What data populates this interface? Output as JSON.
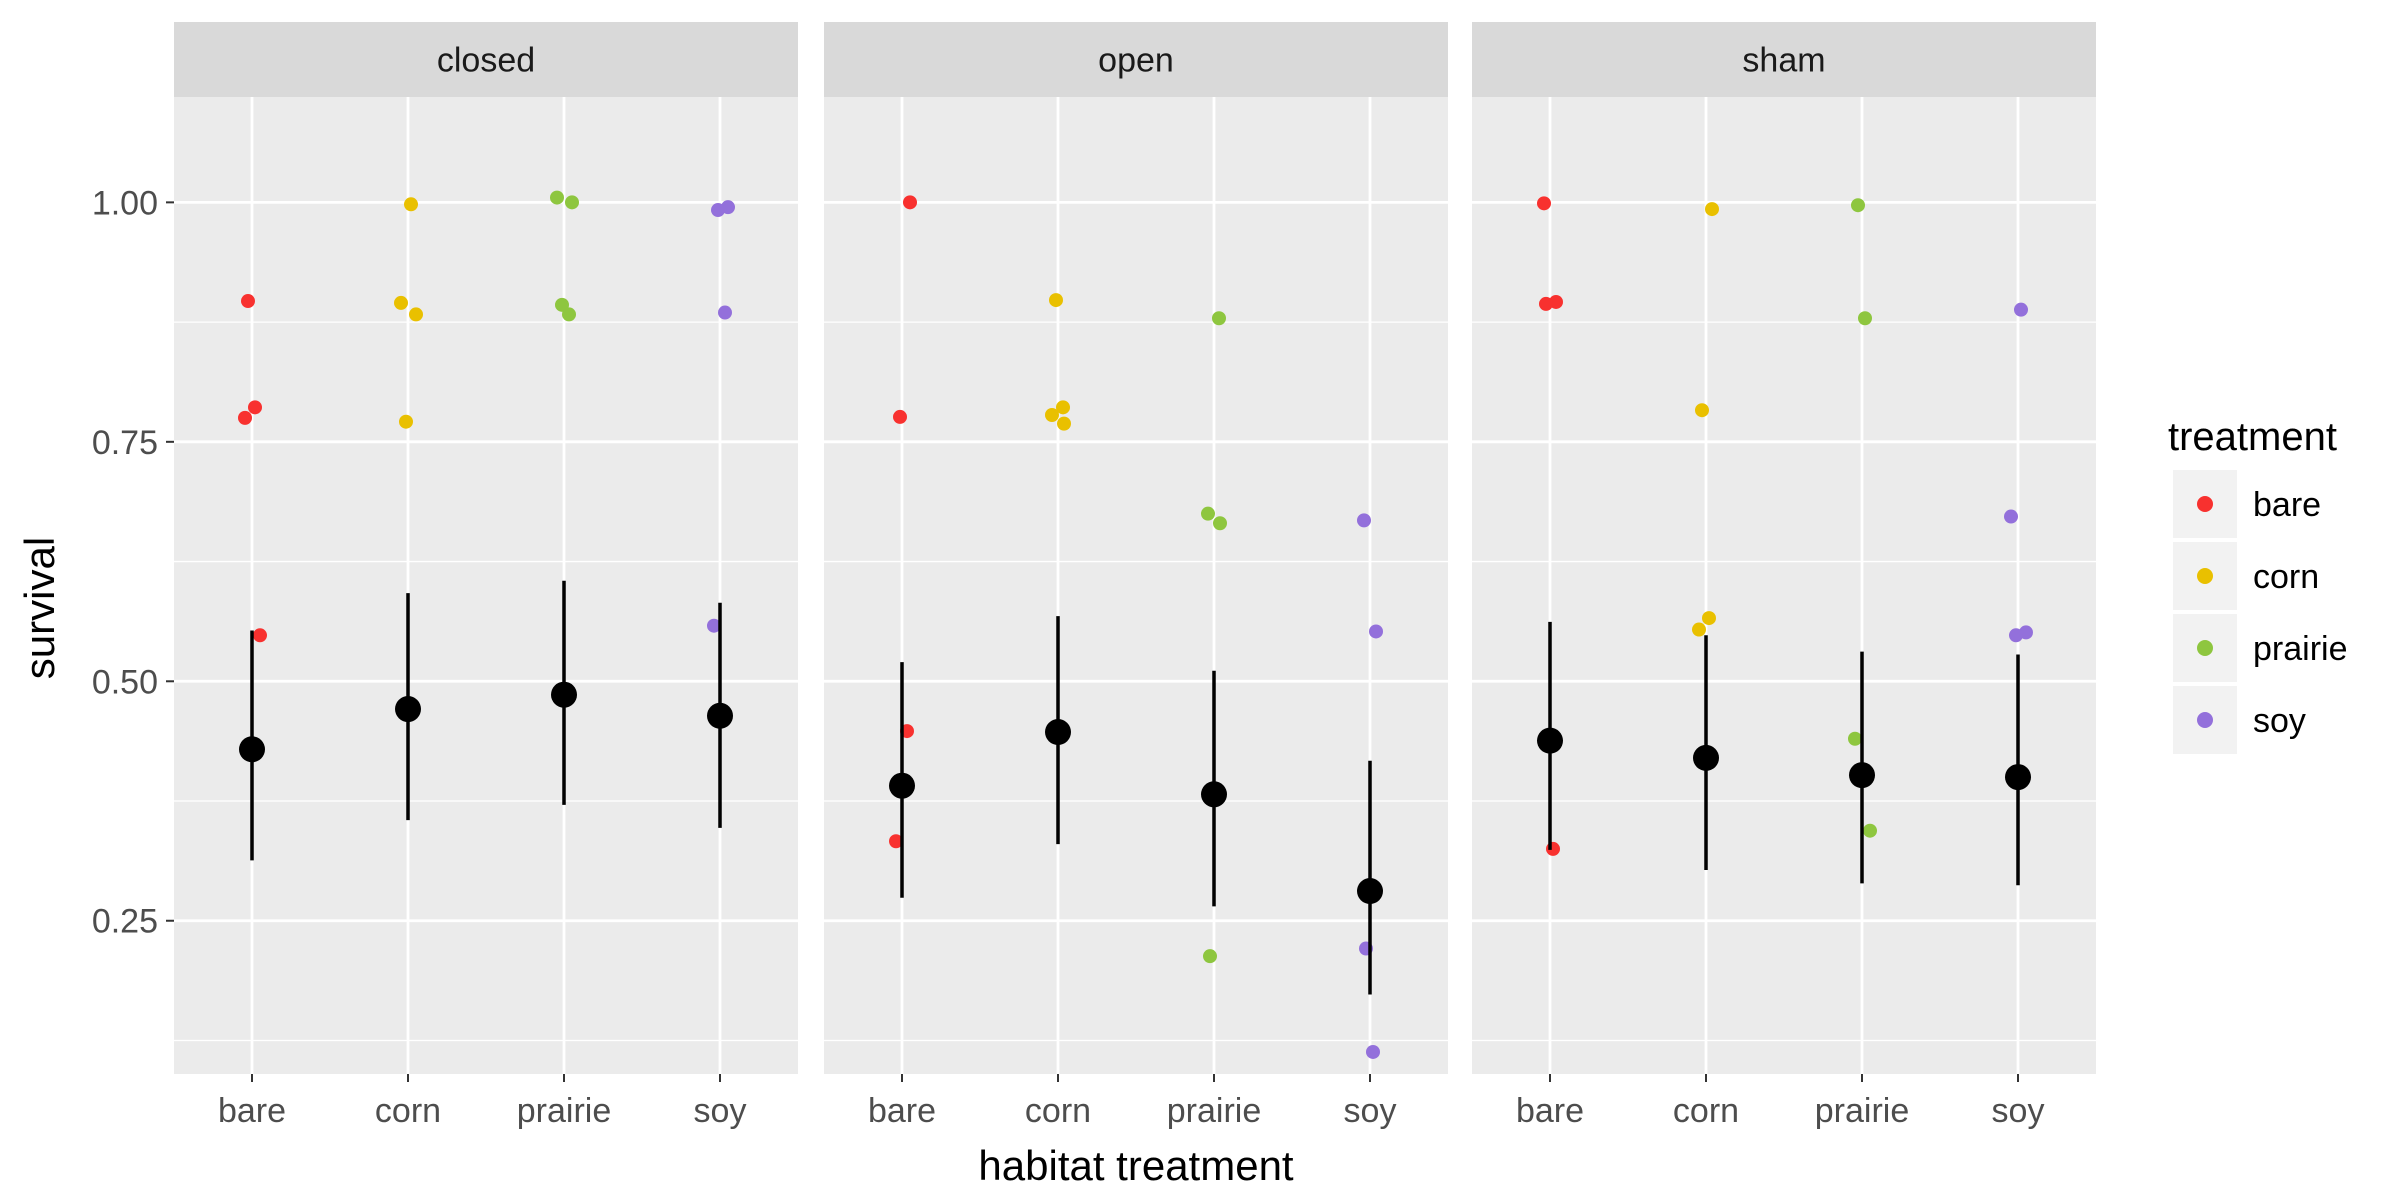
{
  "chart_data": {
    "type": "scatter",
    "title": "",
    "xlabel": "habitat treatment",
    "ylabel": "survival",
    "ylim": [
      0.09,
      1.11
    ],
    "y_ticks": [
      0.25,
      0.5,
      0.75,
      1.0
    ],
    "y_tick_labels": [
      "0.25",
      "0.50",
      "0.75",
      "1.00"
    ],
    "categories": [
      "bare",
      "corn",
      "prairie",
      "soy"
    ],
    "grid": true,
    "legend_position": "right",
    "legend": {
      "title": "treatment",
      "entries": [
        {
          "label": "bare",
          "color": "#f8312f"
        },
        {
          "label": "corn",
          "color": "#e9c000"
        },
        {
          "label": "prairie",
          "color": "#8ec63f"
        },
        {
          "label": "soy",
          "color": "#9370db"
        }
      ]
    },
    "panels": [
      {
        "label": "closed",
        "points": [
          {
            "category": "bare",
            "y": 0.897
          },
          {
            "category": "bare",
            "y": 0.786
          },
          {
            "category": "bare",
            "y": 0.775
          },
          {
            "category": "bare",
            "y": 0.548
          },
          {
            "category": "corn",
            "y": 0.998
          },
          {
            "category": "corn",
            "y": 0.895
          },
          {
            "category": "corn",
            "y": 0.883
          },
          {
            "category": "corn",
            "y": 0.771
          },
          {
            "category": "prairie",
            "y": 1.005
          },
          {
            "category": "prairie",
            "y": 1.0
          },
          {
            "category": "prairie",
            "y": 0.893
          },
          {
            "category": "prairie",
            "y": 0.883
          },
          {
            "category": "soy",
            "y": 0.995
          },
          {
            "category": "soy",
            "y": 0.992
          },
          {
            "category": "soy",
            "y": 0.885
          },
          {
            "category": "soy",
            "y": 0.558
          }
        ],
        "summary": [
          {
            "category": "bare",
            "mean": 0.429,
            "lower": 0.313,
            "upper": 0.553
          },
          {
            "category": "corn",
            "mean": 0.471,
            "lower": 0.355,
            "upper": 0.592
          },
          {
            "category": "prairie",
            "mean": 0.486,
            "lower": 0.371,
            "upper": 0.605
          },
          {
            "category": "soy",
            "mean": 0.464,
            "lower": 0.347,
            "upper": 0.582
          }
        ]
      },
      {
        "label": "open",
        "points": [
          {
            "category": "bare",
            "y": 1.0
          },
          {
            "category": "bare",
            "y": 0.776
          },
          {
            "category": "bare",
            "y": 0.448
          },
          {
            "category": "bare",
            "y": 0.333
          },
          {
            "category": "corn",
            "y": 0.898
          },
          {
            "category": "corn",
            "y": 0.786
          },
          {
            "category": "corn",
            "y": 0.778
          },
          {
            "category": "corn",
            "y": 0.769
          },
          {
            "category": "prairie",
            "y": 0.879
          },
          {
            "category": "prairie",
            "y": 0.675
          },
          {
            "category": "prairie",
            "y": 0.665
          },
          {
            "category": "prairie",
            "y": 0.213
          },
          {
            "category": "soy",
            "y": 0.668
          },
          {
            "category": "soy",
            "y": 0.552
          },
          {
            "category": "soy",
            "y": 0.221
          },
          {
            "category": "soy",
            "y": 0.113
          }
        ],
        "summary": [
          {
            "category": "bare",
            "mean": 0.391,
            "lower": 0.274,
            "upper": 0.52
          },
          {
            "category": "corn",
            "mean": 0.447,
            "lower": 0.33,
            "upper": 0.568
          },
          {
            "category": "prairie",
            "mean": 0.382,
            "lower": 0.265,
            "upper": 0.511
          },
          {
            "category": "soy",
            "mean": 0.281,
            "lower": 0.173,
            "upper": 0.417
          }
        ]
      },
      {
        "label": "sham",
        "points": [
          {
            "category": "bare",
            "y": 0.999
          },
          {
            "category": "bare",
            "y": 0.896
          },
          {
            "category": "bare",
            "y": 0.894
          },
          {
            "category": "bare",
            "y": 0.325
          },
          {
            "category": "corn",
            "y": 0.993
          },
          {
            "category": "corn",
            "y": 0.783
          },
          {
            "category": "corn",
            "y": 0.566
          },
          {
            "category": "corn",
            "y": 0.554
          },
          {
            "category": "prairie",
            "y": 0.997
          },
          {
            "category": "prairie",
            "y": 0.879
          },
          {
            "category": "prairie",
            "y": 0.44
          },
          {
            "category": "prairie",
            "y": 0.344
          },
          {
            "category": "soy",
            "y": 0.888
          },
          {
            "category": "soy",
            "y": 0.672
          },
          {
            "category": "soy",
            "y": 0.551
          },
          {
            "category": "soy",
            "y": 0.548
          }
        ],
        "summary": [
          {
            "category": "bare",
            "mean": 0.438,
            "lower": 0.324,
            "upper": 0.562
          },
          {
            "category": "corn",
            "mean": 0.42,
            "lower": 0.303,
            "upper": 0.548
          },
          {
            "category": "prairie",
            "mean": 0.402,
            "lower": 0.289,
            "upper": 0.531
          },
          {
            "category": "soy",
            "mean": 0.4,
            "lower": 0.287,
            "upper": 0.528
          }
        ]
      }
    ]
  }
}
